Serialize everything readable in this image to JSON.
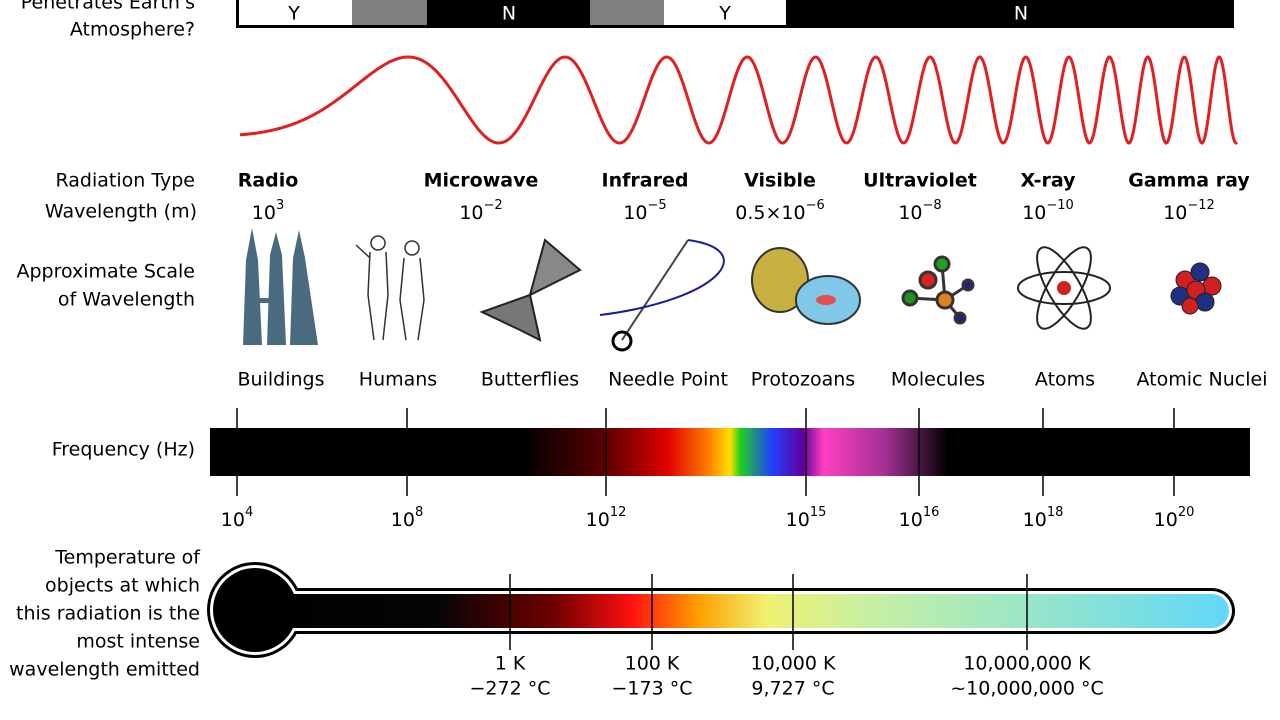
{
  "atmosphere": {
    "label": [
      "Penetrates Earth's",
      "Atmosphere?"
    ],
    "segments": [
      "Y",
      "N",
      "Y",
      "N"
    ]
  },
  "rows": {
    "radiation_type": "Radiation Type",
    "wavelength": "Wavelength (m)",
    "scale": [
      "Approximate Scale",
      "of Wavelength"
    ],
    "frequency": "Frequency (Hz)",
    "temperature": [
      "Temperature of",
      "objects at which",
      "this radiation is the",
      "most intense",
      "wavelength emitted"
    ]
  },
  "types": [
    "Radio",
    "Microwave",
    "Infrared",
    "Visible",
    "Ultraviolet",
    "X-ray",
    "Gamma ray"
  ],
  "wavelengths": [
    {
      "base": "10",
      "exp": "3"
    },
    {
      "base": "10",
      "exp": "−2"
    },
    {
      "base": "10",
      "exp": "−5"
    },
    {
      "base": "0.5×10",
      "exp": "−6"
    },
    {
      "base": "10",
      "exp": "−8"
    },
    {
      "base": "10",
      "exp": "−10"
    },
    {
      "base": "10",
      "exp": "−12"
    }
  ],
  "scales": [
    "Buildings",
    "Humans",
    "Butterflies",
    "Needle Point",
    "Protozoans",
    "Molecules",
    "Atoms",
    "Atomic Nuclei"
  ],
  "frequencies": [
    {
      "base": "10",
      "exp": "4"
    },
    {
      "base": "10",
      "exp": "8"
    },
    {
      "base": "10",
      "exp": "12"
    },
    {
      "base": "10",
      "exp": "15"
    },
    {
      "base": "10",
      "exp": "16"
    },
    {
      "base": "10",
      "exp": "18"
    },
    {
      "base": "10",
      "exp": "20"
    }
  ],
  "temperatures": [
    {
      "kelvin": "1 K",
      "celsius": "−272 °C"
    },
    {
      "kelvin": "100 K",
      "celsius": "−173 °C"
    },
    {
      "kelvin": "10,000 K",
      "celsius": "9,727 °C"
    },
    {
      "kelvin": "10,000,000 K",
      "celsius": "~10,000,000 °C"
    }
  ]
}
